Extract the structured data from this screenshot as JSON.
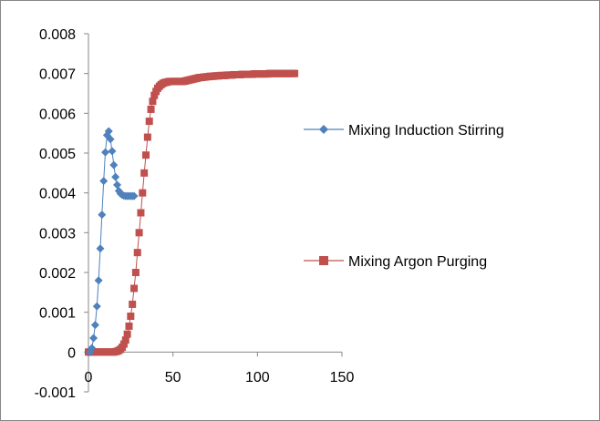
{
  "chart_data": {
    "type": "scatter",
    "title": "",
    "xlabel": "",
    "ylabel": "",
    "xlim": [
      0,
      150
    ],
    "ylim": [
      -0.001,
      0.008
    ],
    "x_ticks": [
      0,
      50,
      100,
      150
    ],
    "x_tick_labels": [
      "0",
      "50",
      "100",
      "150"
    ],
    "y_ticks": [
      -0.001,
      0,
      0.001,
      0.002,
      0.003,
      0.004,
      0.005,
      0.006,
      0.007,
      0.008
    ],
    "y_tick_labels": [
      "-0.001",
      "0",
      "0.001",
      "0.002",
      "0.003",
      "0.004",
      "0.005",
      "0.006",
      "0.007",
      "0.008"
    ],
    "grid": false,
    "legend_position": "right",
    "series": [
      {
        "name": "Mixing Induction Stirring",
        "color": "#4f81bd",
        "marker": "diamond",
        "x": [
          1,
          2,
          3,
          4,
          5,
          6,
          7,
          8,
          9,
          10,
          11,
          12,
          13,
          14,
          15,
          16,
          17,
          18,
          19,
          20,
          21,
          22,
          23,
          24,
          25,
          26,
          27
        ],
        "y": [
          0.0,
          0.0001,
          0.00035,
          0.00068,
          0.00115,
          0.0018,
          0.0026,
          0.00345,
          0.0043,
          0.00502,
          0.00545,
          0.00555,
          0.00535,
          0.00505,
          0.0047,
          0.0044,
          0.0042,
          0.00405,
          0.00398,
          0.00395,
          0.00393,
          0.00392,
          0.00392,
          0.00392,
          0.00392,
          0.00392,
          0.00392
        ]
      },
      {
        "name": "Mixing Argon Purging",
        "color": "#c0504d",
        "marker": "square",
        "x": [
          0,
          1,
          2,
          3,
          4,
          5,
          6,
          7,
          8,
          9,
          10,
          11,
          12,
          13,
          14,
          15,
          16,
          17,
          18,
          19,
          20,
          21,
          22,
          23,
          24,
          25,
          26,
          27,
          28,
          29,
          30,
          31,
          32,
          33,
          34,
          35,
          36,
          37,
          38,
          39,
          40,
          41,
          42,
          43,
          44,
          45,
          46,
          47,
          48,
          49,
          50,
          51,
          52,
          53,
          54,
          55,
          56,
          57,
          58,
          59,
          60,
          61,
          62,
          63,
          64,
          65,
          66,
          67,
          68,
          69,
          70,
          71,
          72,
          73,
          74,
          75,
          76,
          77,
          78,
          79,
          80,
          81,
          82,
          83,
          84,
          85,
          86,
          87,
          88,
          89,
          90,
          91,
          92,
          93,
          94,
          95,
          96,
          97,
          98,
          99,
          100,
          101,
          102,
          103,
          104,
          105,
          106,
          107,
          108,
          109,
          110,
          111,
          112,
          113,
          114,
          115,
          116,
          117,
          118,
          119,
          120,
          121,
          122
        ],
        "y": [
          0.0,
          0.0,
          0.0,
          0.0,
          0.0,
          0.0,
          0.0,
          0.0,
          0.0,
          0.0,
          0.0,
          0.0,
          0.0,
          0.0,
          0.0,
          0.0,
          1e-05,
          2e-05,
          4e-05,
          7e-05,
          0.00012,
          0.0002,
          0.0003,
          0.00045,
          0.00065,
          0.0009,
          0.0012,
          0.0016,
          0.002,
          0.0025,
          0.003,
          0.0035,
          0.004,
          0.0045,
          0.00495,
          0.0054,
          0.0058,
          0.0061,
          0.0063,
          0.00645,
          0.00655,
          0.00663,
          0.00668,
          0.00672,
          0.00675,
          0.00677,
          0.00678,
          0.00679,
          0.0068,
          0.0068,
          0.0068,
          0.0068,
          0.0068,
          0.0068,
          0.0068,
          0.0068,
          0.0068,
          0.00681,
          0.00682,
          0.00683,
          0.00684,
          0.00685,
          0.00686,
          0.00687,
          0.00688,
          0.00689,
          0.0069,
          0.0069,
          0.00691,
          0.00691,
          0.00692,
          0.00692,
          0.00693,
          0.00693,
          0.00693,
          0.00694,
          0.00694,
          0.00694,
          0.00695,
          0.00695,
          0.00695,
          0.00695,
          0.00696,
          0.00696,
          0.00696,
          0.00696,
          0.00697,
          0.00697,
          0.00697,
          0.00697,
          0.00697,
          0.00698,
          0.00698,
          0.00698,
          0.00698,
          0.00698,
          0.00698,
          0.00698,
          0.00699,
          0.00699,
          0.00699,
          0.00699,
          0.00699,
          0.00699,
          0.00699,
          0.00699,
          0.00699,
          0.007,
          0.007,
          0.007,
          0.007,
          0.007,
          0.007,
          0.007,
          0.007,
          0.007,
          0.007,
          0.007,
          0.007,
          0.007,
          0.007,
          0.007,
          0.007
        ]
      }
    ]
  }
}
